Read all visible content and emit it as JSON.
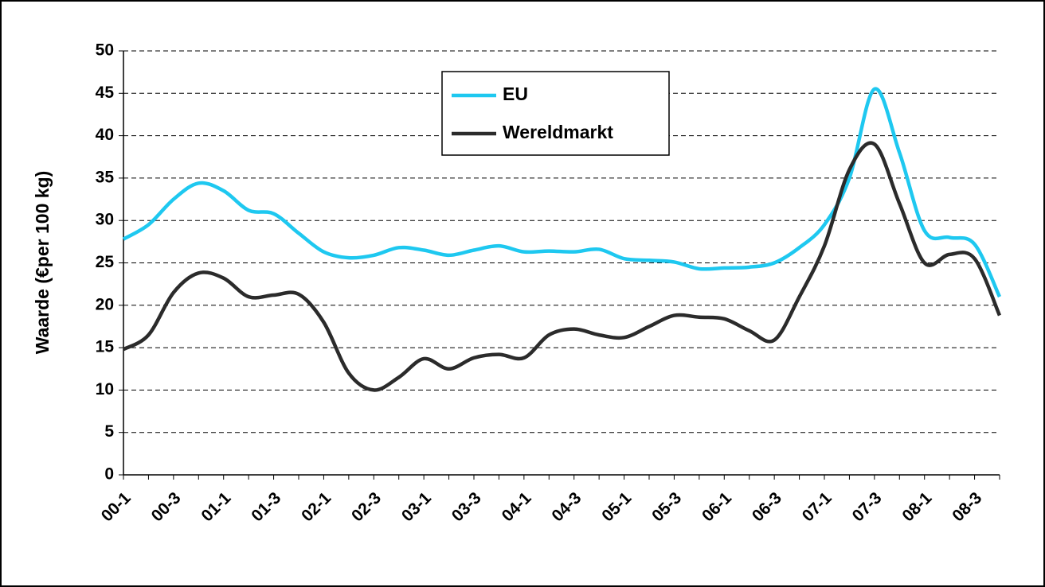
{
  "chart_data": {
    "type": "line",
    "y_label": "Waarde (€per 100 kg)",
    "categories": [
      "00-1",
      null,
      "00-3",
      null,
      "01-1",
      null,
      "01-3",
      null,
      "02-1",
      null,
      "02-3",
      null,
      "03-1",
      null,
      "03-3",
      null,
      "04-1",
      null,
      "04-3",
      null,
      "05-1",
      null,
      "05-3",
      null,
      "06-1",
      null,
      "06-3",
      null,
      "07-1",
      null,
      "07-3",
      null,
      "08-1",
      null,
      "08-3",
      null
    ],
    "series": [
      {
        "name": "EU",
        "color": "#1ec8f0",
        "values": [
          27.8,
          29.5,
          32.5,
          34.4,
          33.5,
          31.2,
          30.8,
          28.5,
          26.3,
          25.6,
          25.9,
          26.8,
          26.5,
          25.9,
          26.5,
          27.0,
          26.3,
          26.4,
          26.3,
          26.6,
          25.5,
          25.3,
          25.1,
          24.3,
          24.4,
          24.5,
          25.0,
          26.8,
          29.5,
          35.0,
          45.5,
          38.0,
          28.8,
          28.0,
          27.2,
          21.0
        ]
      },
      {
        "name": "Wereldmarkt",
        "color": "#2b2b2b",
        "values": [
          14.8,
          16.5,
          21.5,
          23.8,
          23.2,
          21.0,
          21.2,
          21.3,
          18.0,
          12.0,
          10.0,
          11.5,
          13.7,
          12.5,
          13.8,
          14.2,
          13.8,
          16.5,
          17.2,
          16.5,
          16.2,
          17.5,
          18.8,
          18.6,
          18.4,
          17.0,
          15.9,
          21.0,
          27.0,
          36.0,
          39.0,
          32.0,
          25.0,
          26.0,
          25.5,
          18.8
        ]
      }
    ],
    "ylim": [
      0,
      50
    ],
    "yticks": [
      0,
      5,
      10,
      15,
      20,
      25,
      30,
      35,
      40,
      45,
      50
    ],
    "grid": true,
    "legend": "top"
  }
}
